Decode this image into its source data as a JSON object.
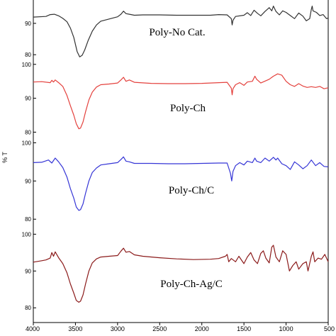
{
  "chart_data": {
    "type": "line",
    "ylabel": "% T",
    "x_ticks": [
      4000,
      3500,
      3000,
      2500,
      2000,
      1500,
      1000,
      500
    ],
    "x_range": [
      4000,
      500
    ],
    "panels": [
      {
        "name": "Poly-No Cat.",
        "color": "#333333",
        "ylim": [
          78,
          97
        ],
        "y_ticks": [
          80,
          90
        ],
        "points": [
          [
            4000,
            92.0
          ],
          [
            3850,
            92.2
          ],
          [
            3800,
            92.8
          ],
          [
            3750,
            92.9
          ],
          [
            3700,
            92.4
          ],
          [
            3650,
            91.6
          ],
          [
            3600,
            90.5
          ],
          [
            3560,
            88.5
          ],
          [
            3520,
            85.5
          ],
          [
            3480,
            81.0
          ],
          [
            3450,
            79.3
          ],
          [
            3420,
            79.8
          ],
          [
            3390,
            81.5
          ],
          [
            3350,
            84.5
          ],
          [
            3300,
            87.5
          ],
          [
            3250,
            89.5
          ],
          [
            3200,
            90.7
          ],
          [
            3100,
            91.4
          ],
          [
            3000,
            92.1
          ],
          [
            2960,
            92.9
          ],
          [
            2930,
            93.9
          ],
          [
            2900,
            93.1
          ],
          [
            2860,
            92.9
          ],
          [
            2800,
            92.6
          ],
          [
            2700,
            92.7
          ],
          [
            2500,
            92.7
          ],
          [
            2300,
            92.6
          ],
          [
            2100,
            92.6
          ],
          [
            1900,
            92.6
          ],
          [
            1800,
            92.8
          ],
          [
            1700,
            92.7
          ],
          [
            1650,
            91.5
          ],
          [
            1640,
            89.5
          ],
          [
            1630,
            91.0
          ],
          [
            1600,
            92.2
          ],
          [
            1500,
            92.6
          ],
          [
            1460,
            93.4
          ],
          [
            1420,
            92.5
          ],
          [
            1380,
            94.2
          ],
          [
            1340,
            93.2
          ],
          [
            1300,
            92.4
          ],
          [
            1250,
            93.8
          ],
          [
            1200,
            95.0
          ],
          [
            1170,
            94.0
          ],
          [
            1150,
            95.5
          ],
          [
            1120,
            93.8
          ],
          [
            1080,
            92.7
          ],
          [
            1040,
            94.0
          ],
          [
            1000,
            93.5
          ],
          [
            950,
            92.5
          ],
          [
            900,
            91.5
          ],
          [
            850,
            93.3
          ],
          [
            800,
            92.3
          ],
          [
            760,
            90.8
          ],
          [
            720,
            91.5
          ],
          [
            700,
            94.5
          ],
          [
            690,
            95.5
          ],
          [
            680,
            94.0
          ],
          [
            640,
            93.5
          ],
          [
            600,
            92.5
          ],
          [
            560,
            92.8
          ],
          [
            520,
            91.5
          ],
          [
            500,
            91.7
          ]
        ]
      },
      {
        "name": "Poly-Ch",
        "color": "#e4413d",
        "ylim": [
          78,
          101
        ],
        "y_ticks": [
          80,
          90,
          100
        ],
        "points": [
          [
            4000,
            94.8
          ],
          [
            3900,
            94.9
          ],
          [
            3800,
            94.6
          ],
          [
            3780,
            95.3
          ],
          [
            3760,
            94.8
          ],
          [
            3740,
            95.4
          ],
          [
            3700,
            94.6
          ],
          [
            3650,
            93.5
          ],
          [
            3600,
            90.8
          ],
          [
            3560,
            87.8
          ],
          [
            3520,
            85.0
          ],
          [
            3490,
            82.5
          ],
          [
            3460,
            81.0
          ],
          [
            3440,
            81.2
          ],
          [
            3410,
            83.0
          ],
          [
            3380,
            86.0
          ],
          [
            3340,
            89.5
          ],
          [
            3300,
            91.8
          ],
          [
            3250,
            93.3
          ],
          [
            3200,
            94.0
          ],
          [
            3100,
            94.2
          ],
          [
            3000,
            94.5
          ],
          [
            2960,
            95.4
          ],
          [
            2930,
            96.2
          ],
          [
            2900,
            95.0
          ],
          [
            2860,
            95.4
          ],
          [
            2800,
            94.7
          ],
          [
            2600,
            94.4
          ],
          [
            2400,
            94.3
          ],
          [
            2200,
            94.3
          ],
          [
            2000,
            94.4
          ],
          [
            1800,
            94.6
          ],
          [
            1700,
            94.7
          ],
          [
            1650,
            93.0
          ],
          [
            1640,
            91.0
          ],
          [
            1630,
            92.8
          ],
          [
            1600,
            94.0
          ],
          [
            1550,
            94.6
          ],
          [
            1500,
            93.8
          ],
          [
            1460,
            94.8
          ],
          [
            1400,
            95.0
          ],
          [
            1370,
            96.5
          ],
          [
            1350,
            95.6
          ],
          [
            1300,
            94.5
          ],
          [
            1200,
            95.6
          ],
          [
            1150,
            96.5
          ],
          [
            1100,
            97.2
          ],
          [
            1050,
            96.8
          ],
          [
            1000,
            95.0
          ],
          [
            950,
            94.0
          ],
          [
            900,
            93.5
          ],
          [
            850,
            94.3
          ],
          [
            800,
            93.6
          ],
          [
            750,
            93.2
          ],
          [
            700,
            93.4
          ],
          [
            650,
            93.2
          ],
          [
            600,
            93.5
          ],
          [
            550,
            92.8
          ],
          [
            500,
            93.1
          ]
        ]
      },
      {
        "name": "Poly-Ch/C",
        "color": "#3535d6",
        "ylim": [
          78,
          101
        ],
        "y_ticks": [
          80,
          90,
          100
        ],
        "points": [
          [
            4000,
            94.8
          ],
          [
            3900,
            94.9
          ],
          [
            3820,
            95.5
          ],
          [
            3780,
            94.7
          ],
          [
            3740,
            96.0
          ],
          [
            3700,
            95.0
          ],
          [
            3650,
            93.5
          ],
          [
            3600,
            91.0
          ],
          [
            3560,
            88.0
          ],
          [
            3520,
            85.5
          ],
          [
            3490,
            83.2
          ],
          [
            3460,
            82.3
          ],
          [
            3440,
            82.5
          ],
          [
            3410,
            84.0
          ],
          [
            3380,
            86.8
          ],
          [
            3340,
            90.0
          ],
          [
            3300,
            92.2
          ],
          [
            3250,
            93.4
          ],
          [
            3200,
            94.2
          ],
          [
            3100,
            94.5
          ],
          [
            3000,
            94.8
          ],
          [
            2960,
            95.6
          ],
          [
            2930,
            96.3
          ],
          [
            2900,
            95.2
          ],
          [
            2860,
            95.0
          ],
          [
            2800,
            94.6
          ],
          [
            2600,
            94.6
          ],
          [
            2400,
            94.5
          ],
          [
            2200,
            94.5
          ],
          [
            2000,
            94.6
          ],
          [
            1800,
            94.7
          ],
          [
            1700,
            94.7
          ],
          [
            1660,
            92.0
          ],
          [
            1645,
            90.0
          ],
          [
            1630,
            92.5
          ],
          [
            1600,
            94.0
          ],
          [
            1550,
            94.8
          ],
          [
            1500,
            94.2
          ],
          [
            1460,
            95.2
          ],
          [
            1400,
            94.8
          ],
          [
            1370,
            96.0
          ],
          [
            1350,
            95.2
          ],
          [
            1300,
            94.8
          ],
          [
            1250,
            96.0
          ],
          [
            1200,
            95.2
          ],
          [
            1150,
            96.2
          ],
          [
            1120,
            95.5
          ],
          [
            1100,
            96.0
          ],
          [
            1050,
            94.5
          ],
          [
            1000,
            94.0
          ],
          [
            950,
            93.0
          ],
          [
            900,
            95.0
          ],
          [
            850,
            94.2
          ],
          [
            800,
            93.2
          ],
          [
            750,
            94.0
          ],
          [
            700,
            95.5
          ],
          [
            650,
            94.0
          ],
          [
            600,
            94.8
          ],
          [
            550,
            93.8
          ],
          [
            500,
            93.7
          ]
        ]
      },
      {
        "name": "Poly-Ch-Ag/C",
        "color": "#8b1a1a",
        "ylim": [
          76,
          102
        ],
        "y_ticks": [
          80,
          90,
          100
        ],
        "points": [
          [
            4000,
            92.4
          ],
          [
            3900,
            92.8
          ],
          [
            3850,
            93.0
          ],
          [
            3800,
            93.5
          ],
          [
            3780,
            95.0
          ],
          [
            3760,
            94.0
          ],
          [
            3740,
            95.2
          ],
          [
            3700,
            93.6
          ],
          [
            3650,
            92.0
          ],
          [
            3600,
            89.5
          ],
          [
            3560,
            86.5
          ],
          [
            3520,
            84.0
          ],
          [
            3490,
            82.0
          ],
          [
            3460,
            81.5
          ],
          [
            3440,
            81.8
          ],
          [
            3410,
            83.5
          ],
          [
            3380,
            86.5
          ],
          [
            3340,
            90.0
          ],
          [
            3300,
            92.2
          ],
          [
            3250,
            93.3
          ],
          [
            3200,
            93.8
          ],
          [
            3100,
            94.0
          ],
          [
            3000,
            94.2
          ],
          [
            2960,
            95.4
          ],
          [
            2930,
            96.2
          ],
          [
            2900,
            95.1
          ],
          [
            2860,
            95.3
          ],
          [
            2800,
            94.4
          ],
          [
            2700,
            94.0
          ],
          [
            2500,
            93.6
          ],
          [
            2300,
            93.3
          ],
          [
            2100,
            93.1
          ],
          [
            1900,
            93.2
          ],
          [
            1800,
            93.4
          ],
          [
            1720,
            94.0
          ],
          [
            1700,
            94.5
          ],
          [
            1680,
            92.5
          ],
          [
            1650,
            93.4
          ],
          [
            1600,
            92.5
          ],
          [
            1560,
            94.0
          ],
          [
            1500,
            92.0
          ],
          [
            1460,
            93.8
          ],
          [
            1420,
            95.0
          ],
          [
            1380,
            93.0
          ],
          [
            1340,
            92.0
          ],
          [
            1300,
            94.8
          ],
          [
            1270,
            95.5
          ],
          [
            1240,
            93.5
          ],
          [
            1200,
            92.2
          ],
          [
            1170,
            96.5
          ],
          [
            1150,
            97.0
          ],
          [
            1120,
            93.8
          ],
          [
            1080,
            92.5
          ],
          [
            1040,
            95.5
          ],
          [
            1000,
            94.5
          ],
          [
            960,
            90.0
          ],
          [
            920,
            91.5
          ],
          [
            880,
            92.5
          ],
          [
            850,
            90.5
          ],
          [
            800,
            92.0
          ],
          [
            760,
            92.5
          ],
          [
            740,
            90.0
          ],
          [
            700,
            94.0
          ],
          [
            680,
            95.2
          ],
          [
            660,
            92.5
          ],
          [
            620,
            93.5
          ],
          [
            580,
            93.2
          ],
          [
            540,
            94.5
          ],
          [
            500,
            92.5
          ]
        ]
      }
    ]
  }
}
